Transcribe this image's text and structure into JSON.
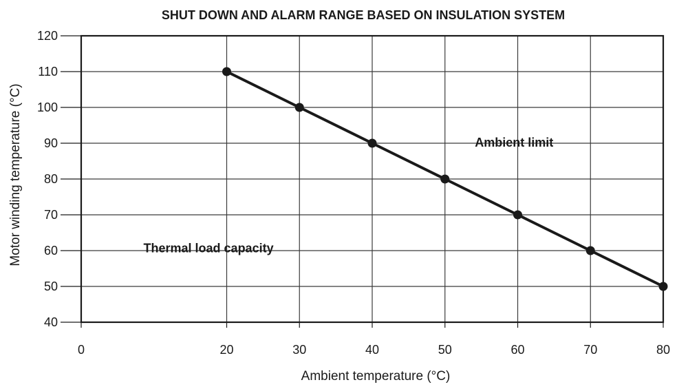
{
  "chart_data": {
    "type": "line",
    "title": "SHUT DOWN AND ALARM RANGE BASED ON INSULATION SYSTEM",
    "xlabel": "Ambient temperature (°C)",
    "ylabel": "Motor winding temperature (°C)",
    "xlim": [
      0,
      80
    ],
    "ylim": [
      40,
      120
    ],
    "xticks": [
      0,
      20,
      30,
      40,
      50,
      60,
      70,
      80
    ],
    "yticks": [
      40,
      50,
      60,
      70,
      80,
      90,
      100,
      110,
      120
    ],
    "grid": true,
    "series": [
      {
        "x": [
          20,
          30,
          40,
          50,
          60,
          70,
          80
        ],
        "y": [
          110,
          100,
          90,
          80,
          70,
          60,
          50
        ],
        "color": "#1a1a1a",
        "markers": true
      }
    ],
    "annotations": [
      {
        "text": "Ambient limit",
        "x": 59.5,
        "y": 89
      },
      {
        "text": "Thermal load capacity",
        "x": 17.5,
        "y": 59.5
      }
    ]
  }
}
